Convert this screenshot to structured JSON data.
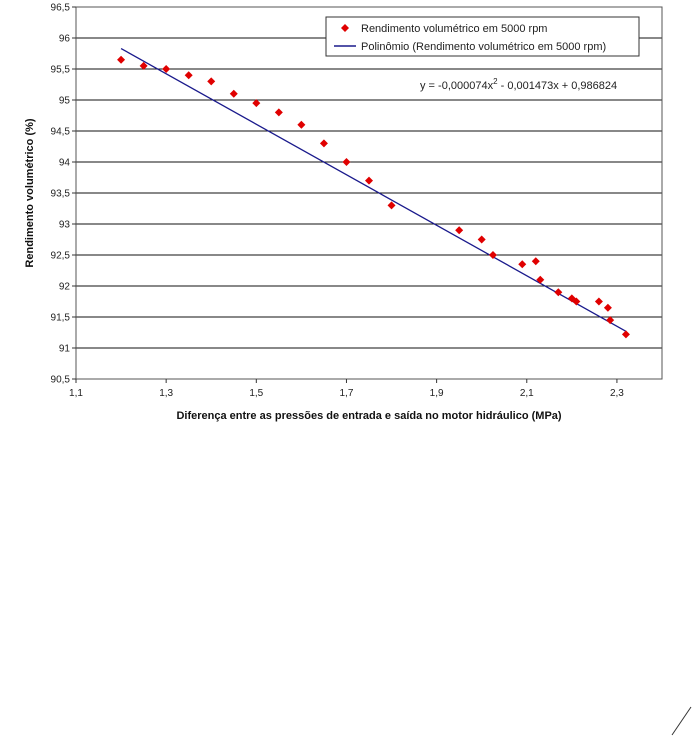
{
  "chart_data": {
    "type": "scatter",
    "xlabel": "Diferença entre as pressões de entrada e saída no motor hidráulico (MPa)",
    "ylabel": "Rendimento volumétrico (%)",
    "xlim": [
      1.1,
      2.4
    ],
    "ylim": [
      90.5,
      96.5
    ],
    "xticks": [
      "1,1",
      "1,3",
      "1,5",
      "1,7",
      "1,9",
      "2,1",
      "2,3"
    ],
    "yticks": [
      "90,5",
      "91",
      "91,5",
      "92",
      "92,5",
      "93",
      "93,5",
      "94",
      "94,5",
      "95",
      "95,5",
      "96",
      "96,5"
    ],
    "grid": "horizontal",
    "legend_position": "top-right",
    "series": [
      {
        "name": "Rendimento volumétrico em 5000 rpm",
        "kind": "markers",
        "color": "#e00000",
        "marker": "diamond",
        "x": [
          1.2,
          1.25,
          1.3,
          1.35,
          1.4,
          1.45,
          1.5,
          1.55,
          1.6,
          1.65,
          1.7,
          1.75,
          1.8,
          1.95,
          2.0,
          2.025,
          2.09,
          2.12,
          2.13,
          2.17,
          2.2,
          2.21,
          2.26,
          2.28,
          2.285,
          2.32
        ],
        "y": [
          95.65,
          95.55,
          95.5,
          95.4,
          95.3,
          95.1,
          94.95,
          94.8,
          94.6,
          94.3,
          94.0,
          93.7,
          93.3,
          92.9,
          92.75,
          92.5,
          92.35,
          92.4,
          92.1,
          91.9,
          91.8,
          91.75,
          91.75,
          91.65,
          91.45,
          91.22
        ]
      },
      {
        "name": "Polinômio (Rendimento volumétrico em 5000 rpm)",
        "kind": "line",
        "color": "#1a1a8c",
        "x": [
          1.2,
          2.32
        ],
        "y": [
          95.83,
          91.27
        ]
      }
    ],
    "equation_parts": {
      "prefix": "y = -0,000074x",
      "exponent": "2",
      "suffix": " - 0,001473x + 0,986824"
    }
  }
}
